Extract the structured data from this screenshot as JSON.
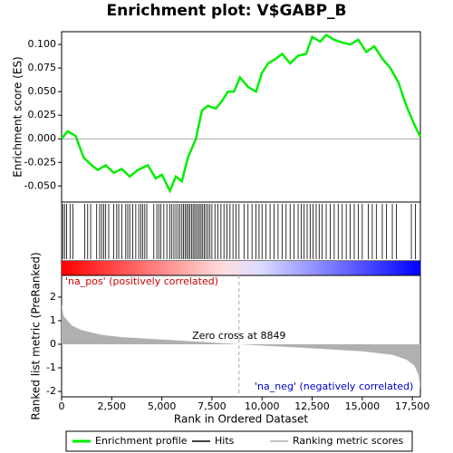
{
  "chart_data": [
    {
      "type": "line",
      "title": "Enrichment plot: V$GABP_B",
      "ylabel": "Enrichment score (ES)",
      "series": [
        {
          "name": "Enrichment profile",
          "color": "#00ee00",
          "x": [
            0,
            300,
            700,
            1100,
            1500,
            1800,
            2200,
            2600,
            3000,
            3400,
            3800,
            4300,
            4700,
            5000,
            5400,
            5700,
            6000,
            6300,
            6700,
            7000,
            7300,
            7700,
            8000,
            8300,
            8600,
            8900,
            9300,
            9700,
            10000,
            10300,
            10700,
            11000,
            11400,
            11800,
            12200,
            12500,
            12900,
            13200,
            13600,
            14000,
            14400,
            14800,
            15200,
            15600,
            16000,
            16400,
            16800,
            17200,
            17600,
            17900
          ],
          "values": [
            0,
            0.008,
            0.003,
            -0.02,
            -0.028,
            -0.033,
            -0.028,
            -0.036,
            -0.032,
            -0.04,
            -0.033,
            -0.028,
            -0.042,
            -0.038,
            -0.055,
            -0.04,
            -0.045,
            -0.02,
            0,
            0.03,
            0.035,
            0.032,
            0.04,
            0.05,
            0.05,
            0.065,
            0.055,
            0.05,
            0.07,
            0.08,
            0.085,
            0.09,
            0.08,
            0.088,
            0.09,
            0.108,
            0.103,
            0.11,
            0.105,
            0.102,
            0.1,
            0.105,
            0.092,
            0.098,
            0.085,
            0.075,
            0.06,
            0.035,
            0.015,
            0.002
          ]
        }
      ],
      "ylim": [
        -0.067,
        0.1135
      ],
      "yticks": [
        {
          "value": -0.05,
          "label": "-0.050"
        },
        {
          "value": -0.025,
          "label": "-0.025"
        },
        {
          "value": 0,
          "label": "0.000"
        },
        {
          "value": 0.025,
          "label": "0.025"
        },
        {
          "value": 0.05,
          "label": "0.050"
        },
        {
          "value": 0.075,
          "label": "0.075"
        },
        {
          "value": 0.1,
          "label": "0.100"
        }
      ]
    },
    {
      "type": "rug",
      "series": [
        {
          "name": "Hits",
          "color": "#000000",
          "values": [
            60,
            150,
            250,
            420,
            560,
            1150,
            1300,
            1450,
            1750,
            1900,
            2000,
            2100,
            2200,
            2350,
            2600,
            2750,
            2850,
            3000,
            3200,
            3300,
            3400,
            3550,
            3700,
            3850,
            3950,
            4050,
            4150,
            4250,
            4600,
            4750,
            4850,
            4950,
            5100,
            5250,
            5400,
            5500,
            5600,
            5700,
            5800,
            5900,
            6000,
            6080,
            6160,
            6240,
            6320,
            6400,
            6480,
            6560,
            6640,
            6720,
            6800,
            6880,
            6960,
            7040,
            7120,
            7200,
            7300,
            7400,
            7500,
            7650,
            7800,
            7950,
            8100,
            8250,
            8400,
            8550,
            8700,
            8850,
            9100,
            9300,
            9500,
            9700,
            9850,
            10000,
            10200,
            10400,
            10600,
            10800,
            11000,
            11200,
            11400,
            11600,
            11800,
            11950,
            12100,
            12250,
            12400,
            12550,
            12700,
            12850,
            13000,
            13200,
            13400,
            13600,
            13800,
            14000,
            14200,
            14400,
            14600,
            14800,
            15000,
            15300,
            15500,
            15700,
            16000,
            16200,
            16500,
            16700,
            17450,
            17650
          ]
        }
      ]
    },
    {
      "type": "area",
      "ylabel": "Ranked list metric (PreRanked)",
      "xlabel": "Rank in Ordered Dataset",
      "series": [
        {
          "name": "Ranking metric scores",
          "color": "#b0b0b0",
          "x": [
            0,
            100,
            500,
            1000,
            2000,
            3000,
            5000,
            7000,
            8849,
            11000,
            13000,
            15000,
            16500,
            17200,
            17600,
            17800,
            17900
          ],
          "values": [
            1.7,
            1.2,
            0.8,
            0.6,
            0.4,
            0.3,
            0.2,
            0.1,
            0,
            -0.1,
            -0.2,
            -0.3,
            -0.45,
            -0.65,
            -0.9,
            -1.3,
            -1.9
          ]
        }
      ],
      "xlim": [
        0,
        17900
      ],
      "ylim": [
        -2.23,
        2.92
      ],
      "yticks": [
        -2,
        -1,
        0,
        1,
        2
      ],
      "xticks": [
        0,
        {
          "value": 2500,
          "label": "2,500"
        },
        {
          "value": 5000,
          "label": "5,000"
        },
        {
          "value": 7500,
          "label": "7,500"
        },
        {
          "value": 10000,
          "label": "10,000"
        },
        {
          "value": 12500,
          "label": "12,500"
        },
        {
          "value": 15000,
          "label": "15,000"
        },
        {
          "value": 17500,
          "label": "17,500"
        }
      ],
      "zero_cross": 8849,
      "zero_cross_label": "Zero cross at 8849",
      "pos_label": "'na_pos' (positively correlated)",
      "neg_label": "'na_neg' (negatively correlated)"
    }
  ]
}
